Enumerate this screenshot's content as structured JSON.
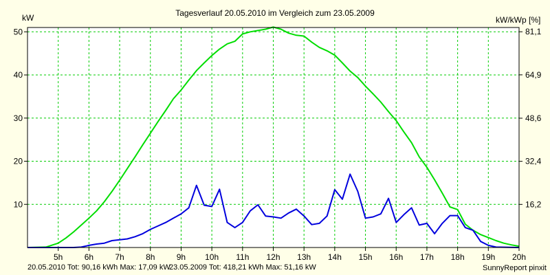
{
  "chart_data": {
    "type": "line",
    "title": "Tagesverlauf 20.05.2010 im Vergleich zum 23.05.2009",
    "ylabel_left": "kW",
    "ylabel_right": "kW/kWp [%]",
    "xlabel": "",
    "x_range": [
      4.0,
      20.0
    ],
    "ylim": [
      0,
      51
    ],
    "right_axis_range": [
      0,
      82.7
    ],
    "x_ticks": [
      {
        "value": 5,
        "label": "5h"
      },
      {
        "value": 6,
        "label": "6h"
      },
      {
        "value": 7,
        "label": "7h"
      },
      {
        "value": 8,
        "label": "8h"
      },
      {
        "value": 9,
        "label": "9h"
      },
      {
        "value": 10,
        "label": "10h"
      },
      {
        "value": 11,
        "label": "11h"
      },
      {
        "value": 12,
        "label": "12h"
      },
      {
        "value": 13,
        "label": "13h"
      },
      {
        "value": 14,
        "label": "14h"
      },
      {
        "value": 15,
        "label": "15h"
      },
      {
        "value": 16,
        "label": "16h"
      },
      {
        "value": 17,
        "label": "17h"
      },
      {
        "value": 18,
        "label": "18h"
      },
      {
        "value": 19,
        "label": "19h"
      },
      {
        "value": 20,
        "label": "20h"
      }
    ],
    "y_ticks_left": [
      {
        "value": 10,
        "label": "10"
      },
      {
        "value": 20,
        "label": "20"
      },
      {
        "value": 30,
        "label": "30"
      },
      {
        "value": 40,
        "label": "40"
      },
      {
        "value": 50,
        "label": "50"
      }
    ],
    "y_ticks_right": [
      {
        "value": 16.2,
        "label": "16,2"
      },
      {
        "value": 32.4,
        "label": "32,4"
      },
      {
        "value": 48.6,
        "label": "48,6"
      },
      {
        "value": 64.9,
        "label": "64,9"
      },
      {
        "value": 81.1,
        "label": "81,1"
      }
    ],
    "grid": true,
    "legend_position": "bottom-left",
    "series": [
      {
        "name": "20.05.2010",
        "legend_text": "20.05.2010 Tot: 90,16 kWh Max: 17,09 kW",
        "color": "#0000dd",
        "x": [
          4.0,
          5.0,
          5.5,
          5.75,
          6.0,
          6.25,
          6.5,
          6.75,
          7.0,
          7.25,
          7.5,
          7.75,
          8.0,
          8.25,
          8.5,
          8.75,
          9.0,
          9.25,
          9.5,
          9.75,
          10.0,
          10.25,
          10.5,
          10.75,
          11.0,
          11.25,
          11.5,
          11.75,
          12.0,
          12.25,
          12.5,
          12.75,
          13.0,
          13.25,
          13.5,
          13.75,
          14.0,
          14.25,
          14.5,
          14.75,
          15.0,
          15.25,
          15.5,
          15.75,
          16.0,
          16.25,
          16.5,
          16.75,
          17.0,
          17.25,
          17.5,
          17.75,
          18.0,
          18.25,
          18.5,
          18.75,
          19.0,
          19.25,
          20.0
        ],
        "y": [
          0,
          0,
          0,
          0.1,
          0.5,
          0.8,
          1.0,
          1.6,
          1.8,
          2.0,
          2.5,
          3.2,
          4.2,
          5.0,
          5.8,
          6.8,
          7.8,
          9.2,
          14.4,
          9.8,
          9.5,
          13.5,
          5.8,
          4.6,
          5.8,
          8.5,
          9.9,
          7.3,
          7.1,
          6.8,
          8.0,
          8.9,
          7.3,
          5.3,
          5.6,
          7.3,
          13.4,
          11.2,
          17.0,
          13.0,
          6.8,
          7.1,
          7.8,
          11.4,
          5.8,
          7.6,
          9.2,
          5.2,
          5.6,
          3.2,
          5.6,
          7.4,
          7.4,
          4.6,
          4.0,
          1.4,
          0.5,
          0.1,
          0
        ]
      },
      {
        "name": "23.05.2009",
        "legend_text": "23.05.2009 Tot: 418,21 kWh Max: 51,16 kW",
        "color": "#00dd00",
        "x": [
          4.0,
          4.6,
          5.0,
          5.25,
          5.5,
          5.75,
          6.0,
          6.25,
          6.5,
          6.75,
          7.0,
          7.25,
          7.5,
          7.75,
          8.0,
          8.25,
          8.5,
          8.75,
          9.0,
          9.25,
          9.5,
          9.75,
          10.0,
          10.25,
          10.5,
          10.75,
          11.0,
          11.25,
          11.5,
          11.75,
          12.0,
          12.25,
          12.5,
          12.75,
          13.0,
          13.25,
          13.5,
          13.75,
          14.0,
          14.25,
          14.5,
          14.75,
          15.0,
          15.25,
          15.5,
          15.75,
          16.0,
          16.25,
          16.5,
          16.75,
          17.0,
          17.25,
          17.5,
          17.75,
          18.0,
          18.25,
          18.5,
          18.75,
          19.0,
          19.25,
          19.5,
          19.75,
          20.0
        ],
        "y": [
          0,
          0.1,
          1.0,
          2.2,
          3.6,
          5.2,
          6.8,
          8.5,
          10.6,
          13.0,
          15.6,
          18.3,
          21.0,
          23.8,
          26.5,
          29.2,
          31.8,
          34.5,
          36.5,
          38.8,
          41.0,
          42.8,
          44.5,
          46.0,
          47.2,
          47.8,
          49.5,
          50.0,
          50.3,
          50.6,
          51.1,
          50.6,
          49.7,
          49.2,
          49.0,
          47.6,
          46.4,
          45.6,
          44.6,
          42.8,
          40.9,
          39.4,
          37.4,
          35.6,
          33.7,
          31.5,
          29.4,
          26.8,
          24.3,
          21.0,
          18.6,
          15.7,
          12.6,
          9.4,
          8.8,
          5.4,
          4.0,
          3.0,
          2.3,
          1.6,
          1.0,
          0.6,
          0.3
        ]
      }
    ],
    "footer_right": "SunnyReport pinxit"
  }
}
